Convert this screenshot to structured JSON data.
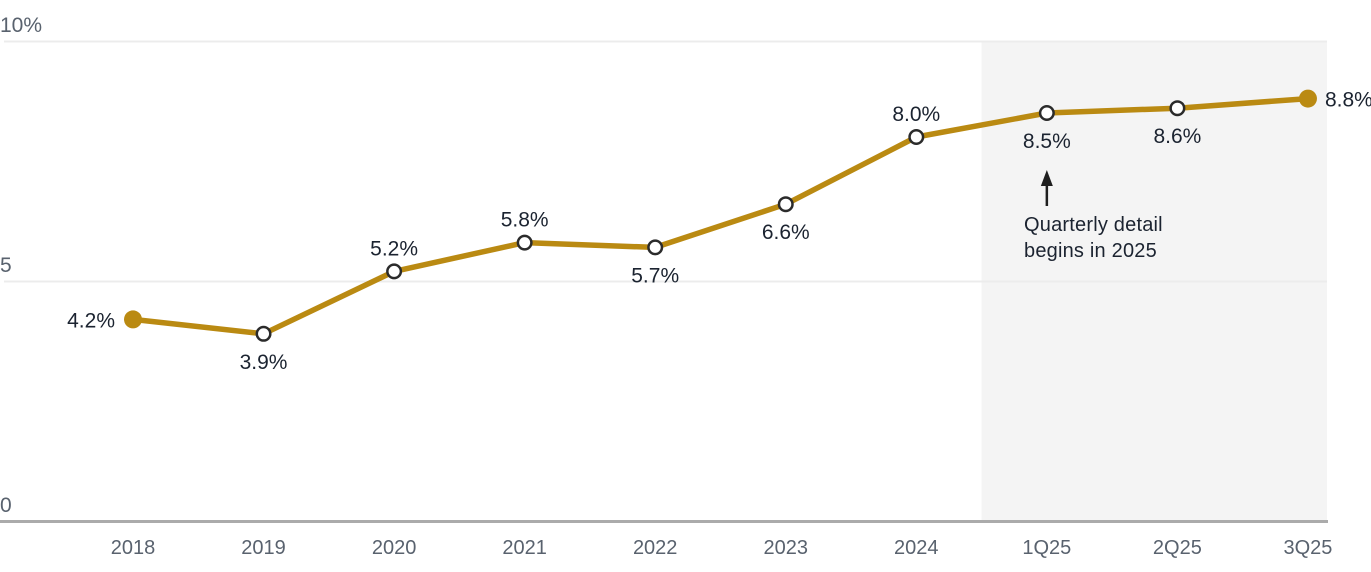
{
  "chart_data": {
    "type": "line",
    "title": "",
    "xlabel": "",
    "ylabel": "",
    "legend": false,
    "grid": true,
    "categories": [
      "2018",
      "2019",
      "2020",
      "2021",
      "2022",
      "2023",
      "2024",
      "1Q25",
      "2Q25",
      "3Q25"
    ],
    "values": [
      4.2,
      3.9,
      5.2,
      5.8,
      5.7,
      6.6,
      8.0,
      8.5,
      8.6,
      8.8
    ],
    "point_labels": [
      "4.2%",
      "3.9%",
      "5.2%",
      "5.8%",
      "5.7%",
      "6.6%",
      "8.0%",
      "8.5%",
      "8.6%",
      "8.8%"
    ],
    "label_placement": [
      "left",
      "below",
      "above",
      "above",
      "below",
      "below",
      "above",
      "below",
      "below",
      "right"
    ],
    "marker_styles": [
      "filled",
      "open",
      "open",
      "open",
      "open",
      "open",
      "open",
      "open",
      "open",
      "filled"
    ],
    "ylim": [
      0,
      10
    ],
    "y_ticks": [
      {
        "value": 0,
        "label": "0"
      },
      {
        "value": 5,
        "label": "5"
      },
      {
        "value": 10,
        "label": "10%"
      }
    ],
    "colors": {
      "line": "#ba8a12",
      "marker_fill": "#ba8a12",
      "marker_open_stroke": "#2b2b2b",
      "data_label": "#1b2330",
      "axis_tick_label": "#59626e",
      "gridline": "#ececec",
      "axis_line": "#ababab",
      "highlight_fill": "#f4f4f4",
      "annotation_arrow": "#1f1f1f"
    },
    "highlight_region": {
      "start_category": "1Q25",
      "end_category": "3Q25",
      "fill": "#f4f4f4"
    },
    "annotation": {
      "line1": "Quarterly detail",
      "line2": "begins in 2025",
      "arrow_icon": "up-arrow",
      "target_category": "1Q25"
    }
  }
}
